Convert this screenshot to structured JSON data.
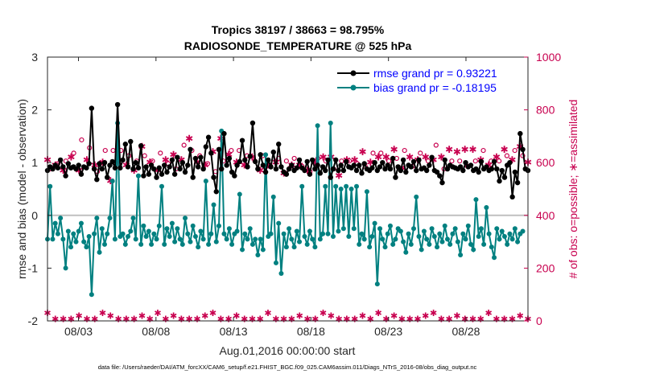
{
  "chart_data": {
    "type": "line",
    "title": "Tropics 38197 / 38663 = 98.795%",
    "subtitle": "RADIOSONDE_TEMPERATURE @ 525 hPa",
    "xlabel": "Aug.01,2016 00:00:00 start",
    "ylabel": "rmse and bias (model - observation)",
    "ylabel_right": "# of obs: o=possible; ∗=assimilated",
    "x_ticks": [
      {
        "value": 3,
        "label": "08/03"
      },
      {
        "value": 8,
        "label": "08/08"
      },
      {
        "value": 13,
        "label": "08/13"
      },
      {
        "value": 18,
        "label": "08/18"
      },
      {
        "value": 23,
        "label": "08/23"
      },
      {
        "value": 28,
        "label": "08/28"
      }
    ],
    "xlim": [
      1,
      32
    ],
    "ylim": [
      -2,
      3
    ],
    "y_ticks": [
      -2,
      -1,
      0,
      1,
      2,
      3
    ],
    "ylim_right": [
      0,
      1000
    ],
    "y_ticks_right": [
      0,
      200,
      400,
      600,
      800,
      1000
    ],
    "zero_line": 0,
    "legend": [
      "rmse grand pr = 0.93221",
      "bias grand pr = -0.18195"
    ],
    "legend_position": "top-right",
    "series": [
      {
        "name": "rmse",
        "color": "#000000",
        "marker": "star",
        "values": [
          0.85,
          0.92,
          0.88,
          0.95,
          0.9,
          1.05,
          0.92,
          0.75,
          0.98,
          0.9,
          0.92,
          0.88,
          0.95,
          0.78,
          0.92,
          0.9,
          0.98,
          2.03,
          0.88,
          0.68,
          0.98,
          0.88,
          1.0,
          0.72,
          0.95,
          1.02,
          0.9,
          2.1,
          0.9,
          1.05,
          1.35,
          0.92,
          1.4,
          0.88,
          1.0,
          0.9,
          1.32,
          0.75,
          0.92,
          0.78,
          0.95,
          0.88,
          0.72,
          0.9,
          0.78,
          0.95,
          0.82,
          0.92,
          1.05,
          0.78,
          1.1,
          0.88,
          1.0,
          0.82,
          0.95,
          1.25,
          0.72,
          1.08,
          0.92,
          1.1,
          0.88,
          1.3,
          1.48,
          1.18,
          0.72,
          0.45,
          1.25,
          0.88,
          1.55,
          0.95,
          1.08,
          0.82,
          0.75,
          0.95,
          1.02,
          1.42,
          1.05,
          0.92,
          1.12,
          1.75,
          1.02,
          0.88,
          1.15,
          0.95,
          0.82,
          1.05,
          0.92,
          1.2,
          0.88,
          1.35,
          0.92,
          0.82,
          0.78,
          0.88,
          0.95,
          0.85,
          0.9,
          1.05,
          0.9,
          0.85,
          1.02,
          0.78,
          1.05,
          0.88,
          0.95,
          0.8,
          0.92,
          0.85,
          1.05,
          0.72,
          0.88,
          1.05,
          0.85,
          0.95,
          0.85,
          1.02,
          0.92,
          0.9,
          0.95,
          0.85,
          0.95,
          0.8,
          0.98,
          0.88,
          0.85,
          0.9,
          1.0,
          0.85,
          0.92,
          1.0,
          0.88,
          0.95,
          0.88,
          1.08,
          0.72,
          0.92,
          0.85,
          1.05,
          0.82,
          0.95,
          0.92,
          1.02,
          0.85,
          1.05,
          0.88,
          0.9,
          0.85,
          0.95,
          1.1,
          0.85,
          0.82,
          0.75,
          0.62,
          1.05,
          0.88,
          0.95,
          0.92,
          0.9,
          0.88,
          0.92,
          0.85,
          1.0,
          0.92,
          0.95,
          0.85,
          0.88,
          0.82,
          1.02,
          0.88,
          0.92,
          0.85,
          0.88,
          1.02,
          0.88,
          0.65,
          0.85,
          0.72,
          0.95,
          1.0,
          0.35,
          0.82,
          0.62,
          1.55,
          1.25,
          0.88,
          0.85
        ]
      },
      {
        "name": "bias",
        "color": "#008080",
        "marker": "dot",
        "values": [
          -0.45,
          0.55,
          -0.45,
          -0.15,
          -0.35,
          -0.05,
          -0.45,
          -1.0,
          -0.3,
          -0.6,
          -0.35,
          -0.5,
          -0.3,
          -0.15,
          -0.5,
          -0.6,
          -0.4,
          -1.5,
          -0.35,
          -0.05,
          -0.7,
          -0.25,
          -0.55,
          -0.35,
          -0.05,
          0.65,
          -0.45,
          1.75,
          -0.4,
          -0.35,
          -0.55,
          -0.4,
          -0.3,
          -0.05,
          -0.45,
          0.75,
          -0.55,
          -0.2,
          -0.4,
          -0.3,
          -0.55,
          -0.35,
          -0.45,
          -0.2,
          0.55,
          -0.55,
          -0.25,
          -0.4,
          -0.15,
          -0.5,
          -0.25,
          -0.45,
          -0.55,
          -0.05,
          -0.35,
          -0.5,
          -0.2,
          -0.4,
          -0.6,
          -0.3,
          -0.45,
          0.65,
          -0.55,
          -0.35,
          0.2,
          -0.5,
          -0.2,
          1.6,
          -0.35,
          -0.45,
          -0.25,
          -0.55,
          -0.35,
          -0.3,
          0.4,
          -0.65,
          -0.35,
          -0.45,
          -0.25,
          -0.55,
          -0.45,
          -0.75,
          -0.45,
          -0.65,
          1.15,
          -0.4,
          -0.35,
          0.35,
          -0.9,
          -0.15,
          -1.1,
          -0.35,
          -0.6,
          -0.25,
          -0.45,
          -0.6,
          -0.3,
          -0.5,
          0.55,
          -0.4,
          -0.55,
          -0.3,
          -0.45,
          -0.6,
          1.7,
          -0.45,
          -0.35,
          0.55,
          -0.35,
          1.75,
          -0.4,
          0.55,
          -0.3,
          0.5,
          -0.25,
          0.55,
          -0.4,
          0.5,
          -0.25,
          0.55,
          -0.55,
          -0.35,
          -0.45,
          0.45,
          -0.6,
          -0.4,
          -0.15,
          -1.3,
          -0.25,
          -0.45,
          -0.6,
          -0.35,
          -0.2,
          -0.55,
          -0.45,
          -0.25,
          -0.3,
          -0.5,
          -0.7,
          -0.35,
          -0.55,
          -0.25,
          0.35,
          -0.4,
          -0.65,
          -0.3,
          -0.45,
          -0.55,
          -0.25,
          -0.4,
          -0.6,
          -0.35,
          -0.5,
          -0.2,
          -0.45,
          -0.55,
          -0.35,
          -0.25,
          -0.5,
          -0.75,
          -0.35,
          -0.45,
          -0.2,
          -0.55,
          -0.65,
          0.3,
          -0.4,
          -0.25,
          -0.55,
          0.15,
          -0.35,
          -0.6,
          -0.8,
          -0.25,
          -0.45,
          -0.3,
          -0.4,
          -0.55,
          -0.35,
          -0.45,
          -0.25,
          -0.5,
          -0.35,
          -0.3
        ]
      }
    ],
    "obs_possible_label": "o=possible",
    "obs_assimilated_label": "∗=assimilated",
    "obs_counts": [
      610,
      570,
      640,
      590,
      590,
      640,
      570,
      600,
      650,
      620,
      630,
      660,
      570,
      680,
      580,
      610,
      650,
      640,
      590,
      560,
      600,
      600,
      640,
      580,
      530,
      640,
      550,
      600,
      640,
      610,
      590,
      620,
      650,
      570,
      600,
      590,
      660,
      620,
      640,
      600,
      600,
      610,
      570,
      630,
      640,
      610,
      590,
      610,
      630,
      570,
      620,
      610,
      660,
      610,
      690,
      640,
      680,
      600,
      620,
      680,
      590,
      590,
      610,
      640,
      560,
      600,
      690,
      600,
      700,
      630,
      640,
      660,
      600,
      640,
      600,
      590,
      620,
      650,
      620,
      600,
      640,
      570,
      620,
      610,
      590,
      580,
      580,
      600,
      610,
      570,
      560,
      600,
      630,
      590,
      610,
      590,
      590,
      580,
      610,
      570,
      560,
      600,
      600,
      610,
      600,
      620,
      600,
      580,
      620,
      570,
      610,
      550,
      600,
      580,
      610,
      600,
      650,
      610,
      590,
      620,
      640,
      580,
      570,
      600,
      630,
      620,
      620,
      630,
      580,
      620,
      600,
      620,
      650,
      610,
      600,
      580,
      640,
      610,
      620,
      580,
      620,
      610,
      630,
      650,
      620,
      600,
      600,
      610,
      660,
      590,
      620,
      570,
      630,
      650,
      600,
      620,
      640,
      600,
      660,
      650,
      580,
      620,
      650,
      600,
      670,
      610,
      640,
      650,
      590,
      600,
      630,
      620,
      600,
      610,
      650,
      620,
      620,
      610,
      640,
      590,
      660,
      620,
      610,
      600
    ],
    "obs_rejected_near_zero": "values near 0 to 40 at ~every 3rd time"
  },
  "footer": "data file: /Users/raeder/DAI/ATM_forcXX/CAM6_setup/f.e21.FHIST_BGC.f09_025.CAM6assim.011/Diags_NTrS_2016-08/obs_diag_output.nc",
  "colors": {
    "rmse": "#000000",
    "bias": "#008080",
    "obs": "#c8004f",
    "zero_line": "#c0c0c0",
    "legend_text": "#0000ff"
  }
}
